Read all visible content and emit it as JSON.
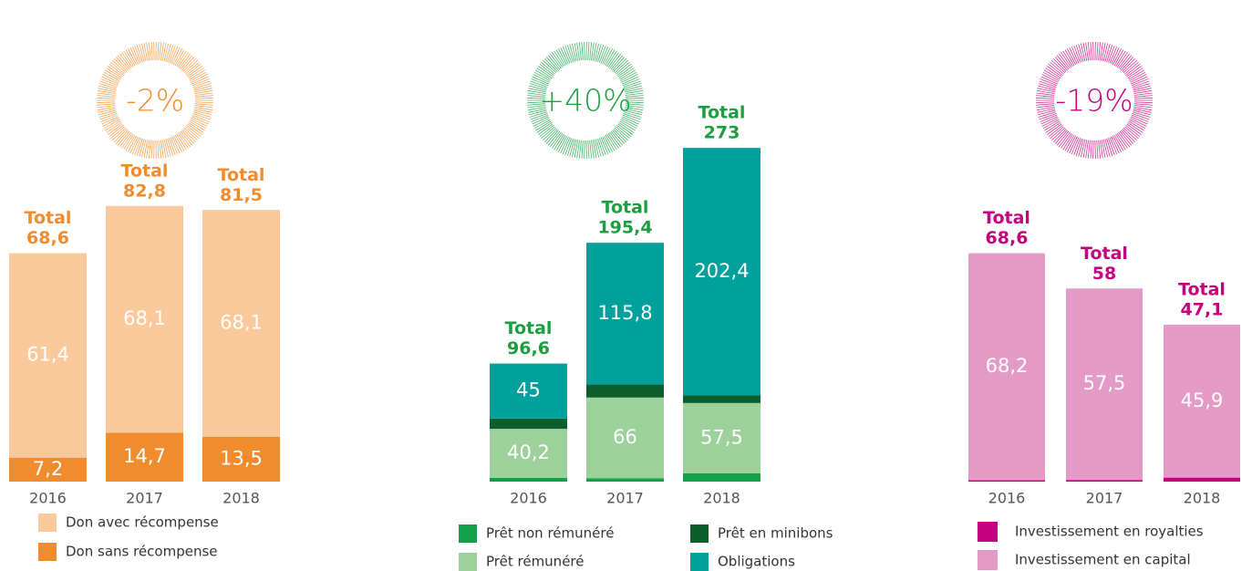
{
  "chart_data": [
    {
      "type": "stacked_bar",
      "change": "-2%",
      "color": "#f08c2e",
      "categories": [
        "2016",
        "2017",
        "2018"
      ],
      "series": [
        {
          "name": "Don sans récompense",
          "color": "#f08c2e",
          "values": [
            7.2,
            14.7,
            13.5
          ],
          "value_labels": [
            "7,2",
            "14,7",
            "13,5"
          ]
        },
        {
          "name": "Don avec récompense",
          "color": "#f9c89b",
          "values": [
            61.4,
            68.1,
            68.1
          ],
          "value_labels": [
            "61,4",
            "68,1",
            "68,1"
          ]
        }
      ],
      "total_text": "Total",
      "totals": [
        68.6,
        82.8,
        81.5
      ],
      "total_labels": [
        "68,6",
        "82,8",
        "81,5"
      ],
      "ylim": [
        0,
        100
      ]
    },
    {
      "type": "stacked_bar",
      "change": "+40%",
      "color": "#1a9e3f",
      "categories": [
        "2016",
        "2017",
        "2018"
      ],
      "series": [
        {
          "name": "Prêt non rémunéré",
          "color": "#13a04a",
          "values": [
            3,
            2.8,
            6.8
          ],
          "value_labels": [
            "3",
            "2,8",
            "6,8"
          ]
        },
        {
          "name": "Prêt rémunéré",
          "color": "#9dd19b",
          "values": [
            40.2,
            66,
            57.5
          ],
          "value_labels": [
            "40,2",
            "66",
            "57,5"
          ]
        },
        {
          "name": "Prêt en minibons",
          "color": "#0c5e2a",
          "values": [
            8.4,
            10.8,
            6.3
          ],
          "value_labels": [
            "8,4",
            "10,8",
            "6,3"
          ]
        },
        {
          "name": "Obligations",
          "color": "#00a19c",
          "values": [
            45,
            115.8,
            202.4
          ],
          "value_labels": [
            "45",
            "115,8",
            "202,4"
          ]
        }
      ],
      "total_text": "Total",
      "totals": [
        96.6,
        195.4,
        273
      ],
      "total_labels": [
        "96,6",
        "195,4",
        "273"
      ],
      "ylim": [
        0,
        300
      ]
    },
    {
      "type": "stacked_bar",
      "change": "-19%",
      "color": "#c6007e",
      "categories": [
        "2016",
        "2017",
        "2018"
      ],
      "series": [
        {
          "name": "Investissement en royalties",
          "color": "#c6007e",
          "values": [
            0.4,
            0.5,
            1.2
          ],
          "value_labels": [
            "0,4",
            "0,5",
            "1,2"
          ]
        },
        {
          "name": "Investissement en capital",
          "color": "#e39ac6",
          "values": [
            68.2,
            57.5,
            45.9
          ],
          "value_labels": [
            "68,2",
            "57,5",
            "45,9"
          ]
        }
      ],
      "total_text": "Total",
      "totals": [
        68.6,
        58,
        47.1
      ],
      "total_labels": [
        "68,6",
        "58",
        "47,1"
      ],
      "ylim": [
        0,
        100
      ]
    }
  ]
}
